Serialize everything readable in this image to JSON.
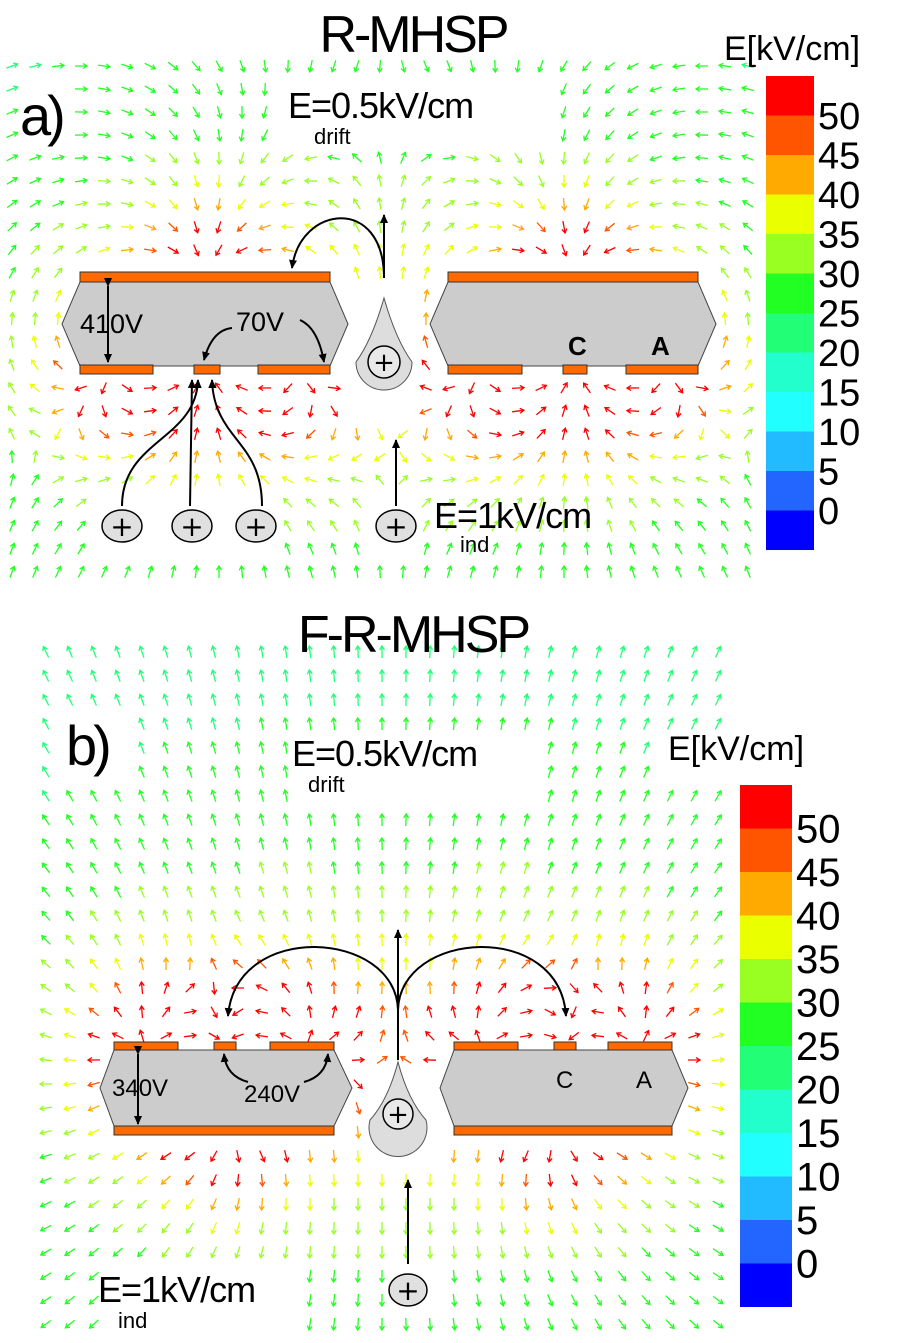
{
  "panel_a": {
    "title": "R-MHSP",
    "label": "a)",
    "drift_field_main": "E=0.5kV/cm",
    "drift_field_sub": "drift",
    "ind_field_main": "E=1kV/cm",
    "ind_field_sub": "ind",
    "voltage_gap": "410V",
    "voltage_strip": "70V",
    "cathode_label": "C",
    "anode_label": "A",
    "ion_symbol": "+"
  },
  "panel_b": {
    "title": "F-R-MHSP",
    "label": "b)",
    "drift_field_main": "E=0.5kV/cm",
    "drift_field_sub": "drift",
    "ind_field_main": "E=1kV/cm",
    "ind_field_sub": "ind",
    "voltage_gap": "340V",
    "voltage_strip": "240V",
    "cathode_label": "C",
    "anode_label": "A",
    "ion_symbol": "+"
  },
  "colorbar": {
    "title": "E[kV/cm]",
    "ticks": [
      "50",
      "45",
      "40",
      "35",
      "30",
      "25",
      "20",
      "15",
      "10",
      "5",
      "0"
    ],
    "colors": [
      "#ff0000",
      "#ff5500",
      "#ffaa00",
      "#eaff00",
      "#99ff22",
      "#22ff22",
      "#22ff77",
      "#22ffcc",
      "#22ffff",
      "#22bbff",
      "#2266ff",
      "#0000ff"
    ]
  },
  "colors": {
    "electrode": "#ff6a00",
    "substrate": "#cccccc",
    "ion_drop": "#dddddd"
  }
}
